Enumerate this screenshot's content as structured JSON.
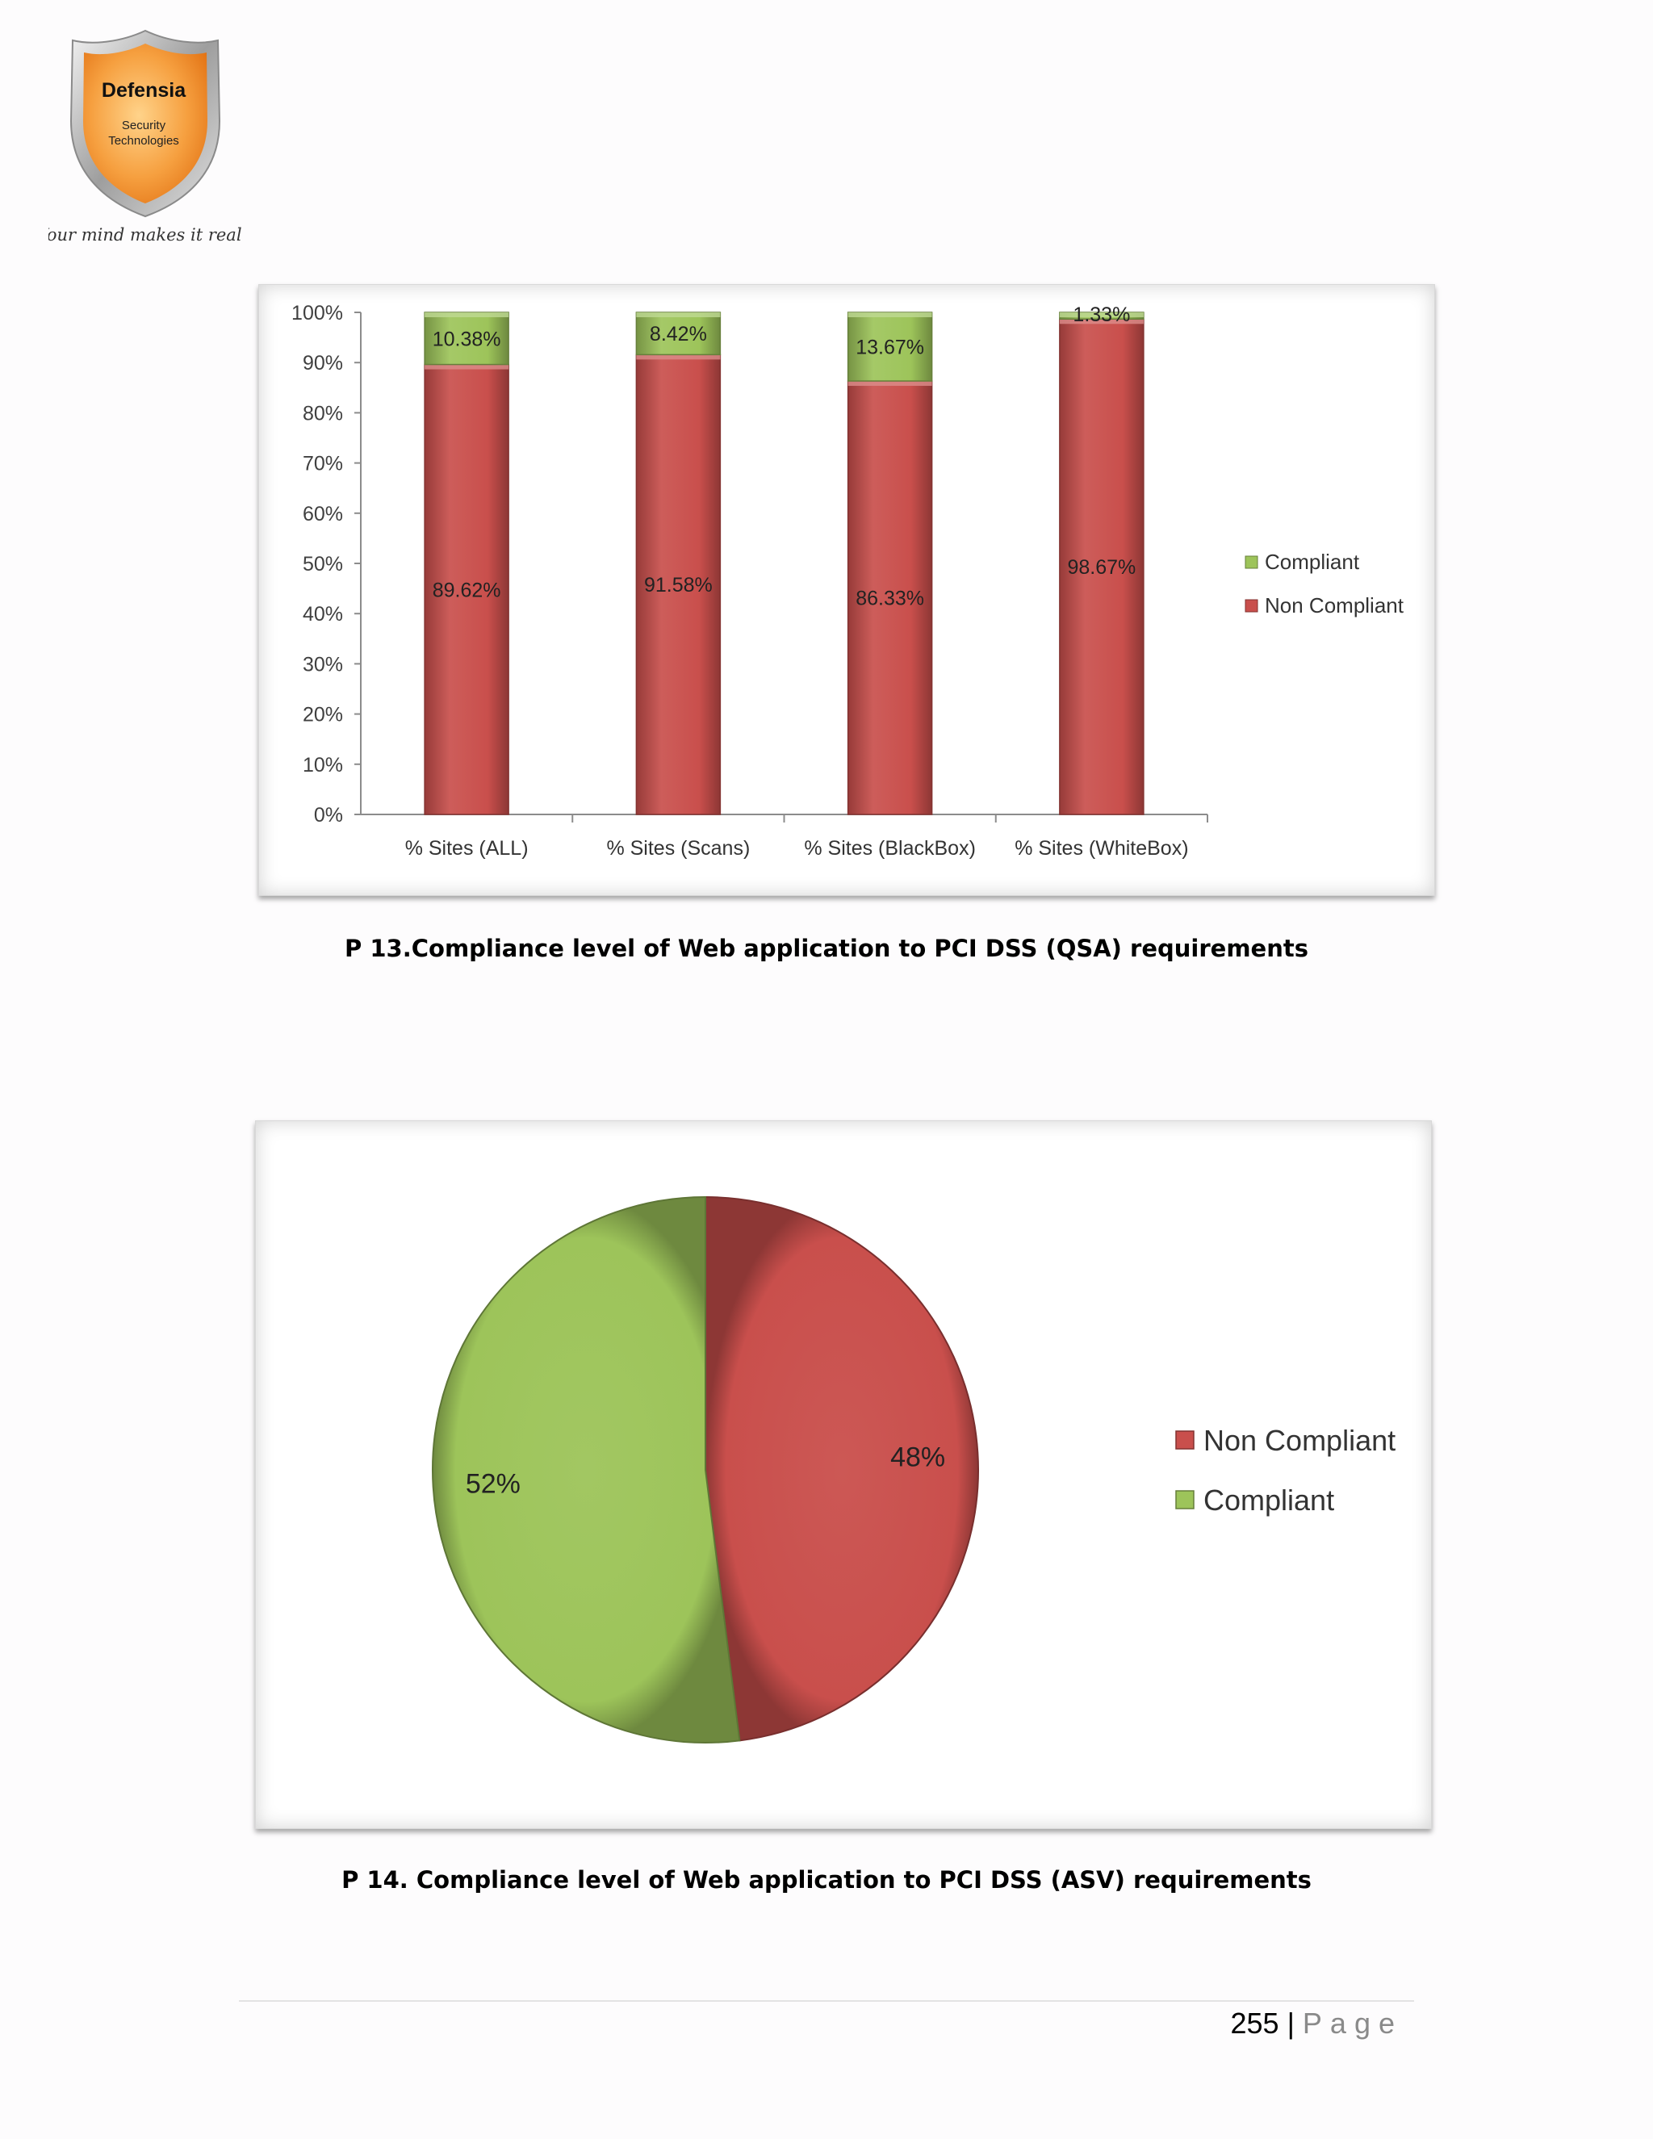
{
  "logo": {
    "name": "Defensia",
    "subtitle_line1": "Security",
    "subtitle_line2": "Technologies",
    "tagline": "Your mind makes it real."
  },
  "colors": {
    "compliant": "#9dc45a",
    "non_compliant": "#c94f4c"
  },
  "chart_data": [
    {
      "type": "bar",
      "stacked": true,
      "categories": [
        "% Sites (ALL)",
        "% Sites (Scans)",
        "% Sites (BlackBox)",
        "% Sites (WhiteBox)"
      ],
      "series": [
        {
          "name": "Non Compliant",
          "values": [
            89.62,
            91.58,
            86.33,
            98.67
          ],
          "labels": [
            "89.62%",
            "91.58%",
            "86.33%",
            "98.67%"
          ],
          "color": "#c94f4c"
        },
        {
          "name": "Compliant",
          "values": [
            10.38,
            8.42,
            13.67,
            1.33
          ],
          "labels": [
            "10.38%",
            "8.42%",
            "13.67%",
            "1.33%"
          ],
          "color": "#9dc45a"
        }
      ],
      "y_ticks": [
        "0%",
        "10%",
        "20%",
        "30%",
        "40%",
        "50%",
        "60%",
        "70%",
        "80%",
        "90%",
        "100%"
      ],
      "ylim": [
        0,
        100
      ],
      "legend": [
        "Compliant",
        "Non Compliant"
      ],
      "legend_position": "right",
      "grid": false
    },
    {
      "type": "pie",
      "slices": [
        {
          "name": "Non Compliant",
          "value": 48,
          "label": "48%",
          "color": "#c94f4c"
        },
        {
          "name": "Compliant",
          "value": 52,
          "label": "52%",
          "color": "#9dc45a"
        }
      ],
      "legend": [
        "Non Compliant",
        "Compliant"
      ],
      "legend_position": "right"
    }
  ],
  "captions": {
    "p13": "P 13.Compliance level of Web application to PCI DSS (QSA) requirements",
    "p14": "P 14. Compliance level of Web application to PCI DSS (ASV) requirements"
  },
  "footer": {
    "page_number": "255",
    "separator": "|",
    "page_word": "Page"
  }
}
